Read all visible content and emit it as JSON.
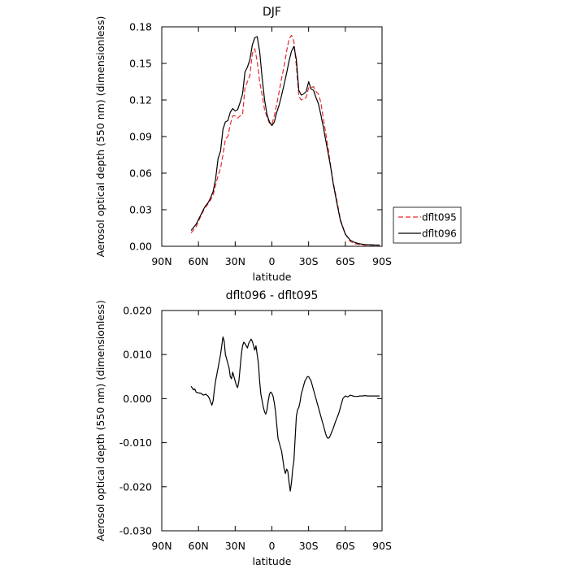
{
  "chart_data": [
    {
      "type": "line",
      "title": "DJF",
      "xlabel": "latitude",
      "ylabel": "Aerosol optical depth (550 nm) (dimensionless)",
      "xlim": [
        90,
        -90
      ],
      "ylim": [
        0,
        0.18
      ],
      "xticks": [
        90,
        60,
        30,
        0,
        -30,
        -60,
        -90
      ],
      "xtick_labels": [
        "90N",
        "60N",
        "30N",
        "0",
        "30S",
        "60S",
        "90S"
      ],
      "yticks": [
        0,
        0.03,
        0.06,
        0.09,
        0.12,
        0.15,
        0.18
      ],
      "ytick_labels": [
        "0.00",
        "0.03",
        "0.06",
        "0.09",
        "0.12",
        "0.15",
        "0.18"
      ],
      "legend_position": "right",
      "series": [
        {
          "name": "dflt095",
          "color": "#e8272a",
          "dash": true,
          "x": [
            66,
            62,
            58,
            55,
            52,
            50,
            48,
            46,
            44,
            42,
            40,
            38,
            36,
            34,
            32,
            30,
            28,
            26,
            24,
            22,
            20,
            18,
            16,
            14,
            12,
            10,
            8,
            6,
            4,
            2,
            0,
            -2,
            -4,
            -6,
            -8,
            -10,
            -12,
            -14,
            -16,
            -18,
            -20,
            -22,
            -24,
            -26,
            -28,
            -30,
            -32,
            -34,
            -36,
            -38,
            -40,
            -42,
            -44,
            -46,
            -48,
            -50,
            -53,
            -56,
            -60,
            -64,
            -68,
            -72,
            -76,
            -80,
            -84,
            -88
          ],
          "y": [
            0.011,
            0.016,
            0.025,
            0.031,
            0.035,
            0.038,
            0.042,
            0.05,
            0.058,
            0.064,
            0.075,
            0.088,
            0.09,
            0.1,
            0.107,
            0.107,
            0.105,
            0.107,
            0.108,
            0.13,
            0.135,
            0.14,
            0.158,
            0.162,
            0.152,
            0.135,
            0.124,
            0.112,
            0.106,
            0.101,
            0.1,
            0.107,
            0.117,
            0.127,
            0.138,
            0.148,
            0.16,
            0.17,
            0.173,
            0.168,
            0.148,
            0.123,
            0.12,
            0.121,
            0.122,
            0.13,
            0.13,
            0.131,
            0.127,
            0.125,
            0.118,
            0.105,
            0.093,
            0.08,
            0.066,
            0.053,
            0.038,
            0.022,
            0.01,
            0.004,
            0.002,
            0.0015,
            0.001,
            0.001,
            0.001,
            0.001
          ]
        },
        {
          "name": "dflt096",
          "color": "#000000",
          "dash": false,
          "x": [
            66,
            62,
            58,
            55,
            52,
            50,
            48,
            46,
            44,
            42,
            40,
            38,
            36,
            34,
            32,
            30,
            28,
            26,
            24,
            22,
            20,
            18,
            16,
            14,
            12,
            10,
            8,
            6,
            4,
            2,
            0,
            -2,
            -4,
            -6,
            -8,
            -10,
            -12,
            -14,
            -16,
            -18,
            -20,
            -22,
            -24,
            -26,
            -28,
            -30,
            -32,
            -34,
            -36,
            -38,
            -40,
            -42,
            -44,
            -46,
            -48,
            -50,
            -53,
            -56,
            -60,
            -64,
            -68,
            -72,
            -76,
            -80,
            -84,
            -88
          ],
          "y": [
            0.013,
            0.018,
            0.026,
            0.032,
            0.036,
            0.04,
            0.045,
            0.055,
            0.072,
            0.078,
            0.096,
            0.102,
            0.103,
            0.11,
            0.113,
            0.111,
            0.112,
            0.118,
            0.125,
            0.143,
            0.147,
            0.153,
            0.165,
            0.171,
            0.172,
            0.16,
            0.138,
            0.12,
            0.108,
            0.102,
            0.099,
            0.102,
            0.11,
            0.116,
            0.124,
            0.133,
            0.142,
            0.152,
            0.16,
            0.164,
            0.153,
            0.128,
            0.124,
            0.125,
            0.127,
            0.135,
            0.129,
            0.128,
            0.122,
            0.117,
            0.108,
            0.098,
            0.087,
            0.076,
            0.065,
            0.052,
            0.036,
            0.021,
            0.01,
            0.005,
            0.003,
            0.002,
            0.0015,
            0.0013,
            0.0011,
            0.001
          ]
        }
      ]
    },
    {
      "type": "line",
      "title": "dflt096 - dflt095",
      "xlabel": "latitude",
      "ylabel": "Aerosol optical depth (550 nm) (dimensionless)",
      "xlim": [
        90,
        -90
      ],
      "ylim": [
        -0.03,
        0.02
      ],
      "xticks": [
        90,
        60,
        30,
        0,
        -30,
        -60,
        -90
      ],
      "xtick_labels": [
        "90N",
        "60N",
        "30N",
        "0",
        "30S",
        "60S",
        "90S"
      ],
      "yticks": [
        -0.03,
        -0.02,
        -0.01,
        0,
        0.01,
        0.02
      ],
      "ytick_labels": [
        "-0.030",
        "-0.020",
        "-0.010",
        "0.000",
        "0.010",
        "0.020"
      ],
      "series": [
        {
          "color": "#000000",
          "dash": false,
          "x": [
            66,
            64,
            63,
            62,
            60,
            58,
            56,
            54,
            52,
            51,
            50,
            49,
            48,
            47,
            46,
            44,
            42,
            41,
            40,
            39,
            38,
            37,
            36,
            35,
            34,
            33,
            32,
            31,
            30,
            29,
            28,
            27,
            26,
            25,
            24,
            23,
            22,
            21,
            20,
            19,
            18,
            17,
            16,
            15,
            14,
            13,
            12,
            11,
            10,
            9,
            8,
            7,
            6,
            5,
            4,
            3,
            2,
            1,
            0,
            -1,
            -2,
            -3,
            -4,
            -5,
            -6,
            -7,
            -8,
            -9,
            -10,
            -11,
            -12,
            -13,
            -14,
            -15,
            -16,
            -17,
            -18,
            -19,
            -20,
            -21,
            -22,
            -23,
            -24,
            -25,
            -26,
            -27,
            -28,
            -29,
            -30,
            -31,
            -32,
            -33,
            -34,
            -35,
            -36,
            -37,
            -38,
            -39,
            -40,
            -41,
            -42,
            -43,
            -44,
            -45,
            -46,
            -47,
            -48,
            -49,
            -50,
            -51,
            -52,
            -53,
            -54,
            -55,
            -56,
            -57,
            -58,
            -60,
            -62,
            -64,
            -66,
            -68,
            -70,
            -72,
            -74,
            -76,
            -78,
            -80,
            -82,
            -84,
            -86,
            -88
          ],
          "y": [
            0.0028,
            0.002,
            0.0022,
            0.0015,
            0.0013,
            0.0012,
            0.0008,
            0.001,
            0.0005,
            0.0,
            -0.0008,
            -0.0015,
            -0.0005,
            0.002,
            0.004,
            0.007,
            0.01,
            0.012,
            0.014,
            0.013,
            0.01,
            0.009,
            0.008,
            0.007,
            0.005,
            0.0045,
            0.006,
            0.005,
            0.004,
            0.003,
            0.0025,
            0.004,
            0.007,
            0.01,
            0.012,
            0.0128,
            0.0125,
            0.012,
            0.0115,
            0.0125,
            0.013,
            0.0135,
            0.013,
            0.012,
            0.011,
            0.012,
            0.01,
            0.008,
            0.004,
            0.001,
            -0.0005,
            -0.002,
            -0.003,
            -0.0035,
            -0.0025,
            -0.0005,
            0.001,
            0.0015,
            0.0012,
            0.0005,
            -0.001,
            -0.003,
            -0.006,
            -0.009,
            -0.01,
            -0.011,
            -0.012,
            -0.014,
            -0.016,
            -0.017,
            -0.016,
            -0.0165,
            -0.019,
            -0.021,
            -0.019,
            -0.016,
            -0.014,
            -0.009,
            -0.004,
            -0.0025,
            -0.002,
            -0.0008,
            0.001,
            0.002,
            0.003,
            0.004,
            0.0045,
            0.005,
            0.005,
            0.0045,
            0.004,
            0.003,
            0.002,
            0.001,
            0.0,
            -0.001,
            -0.002,
            -0.003,
            -0.004,
            -0.005,
            -0.006,
            -0.007,
            -0.008,
            -0.0088,
            -0.009,
            -0.0088,
            -0.0082,
            -0.0075,
            -0.0068,
            -0.006,
            -0.0052,
            -0.0045,
            -0.0038,
            -0.003,
            -0.002,
            -0.001,
            0.0,
            0.0006,
            0.0004,
            0.0008,
            0.0006,
            0.0005,
            0.0005,
            0.0006,
            0.0006,
            0.0007,
            0.0006,
            0.0006,
            0.0006,
            0.0006,
            0.0006,
            0.0006
          ]
        }
      ]
    }
  ]
}
